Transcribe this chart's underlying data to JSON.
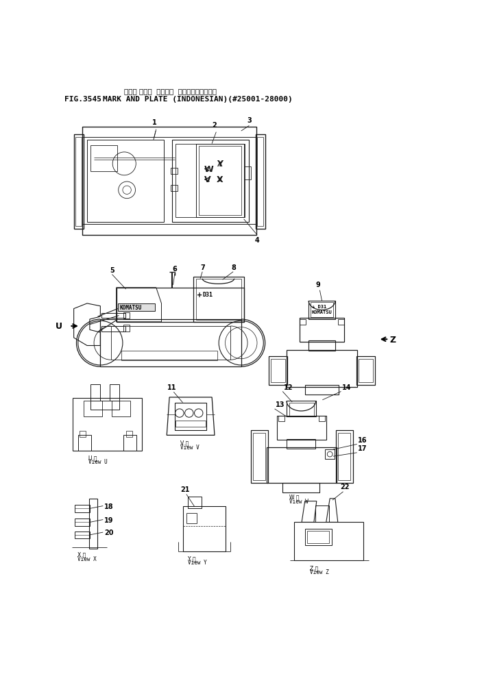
{
  "title_japanese": "マーク オヨビ  プレート  （インドネシアコ）",
  "title_fig": "FIG.3545",
  "title_english": "MARK AND PLATE (INDONESIAN)(#25001-28000)",
  "bg_color": "#ffffff",
  "line_color": "#1a1a1a",
  "text_color": "#000000",
  "fig_width": 7.06,
  "fig_height": 10.04,
  "dpi": 100
}
